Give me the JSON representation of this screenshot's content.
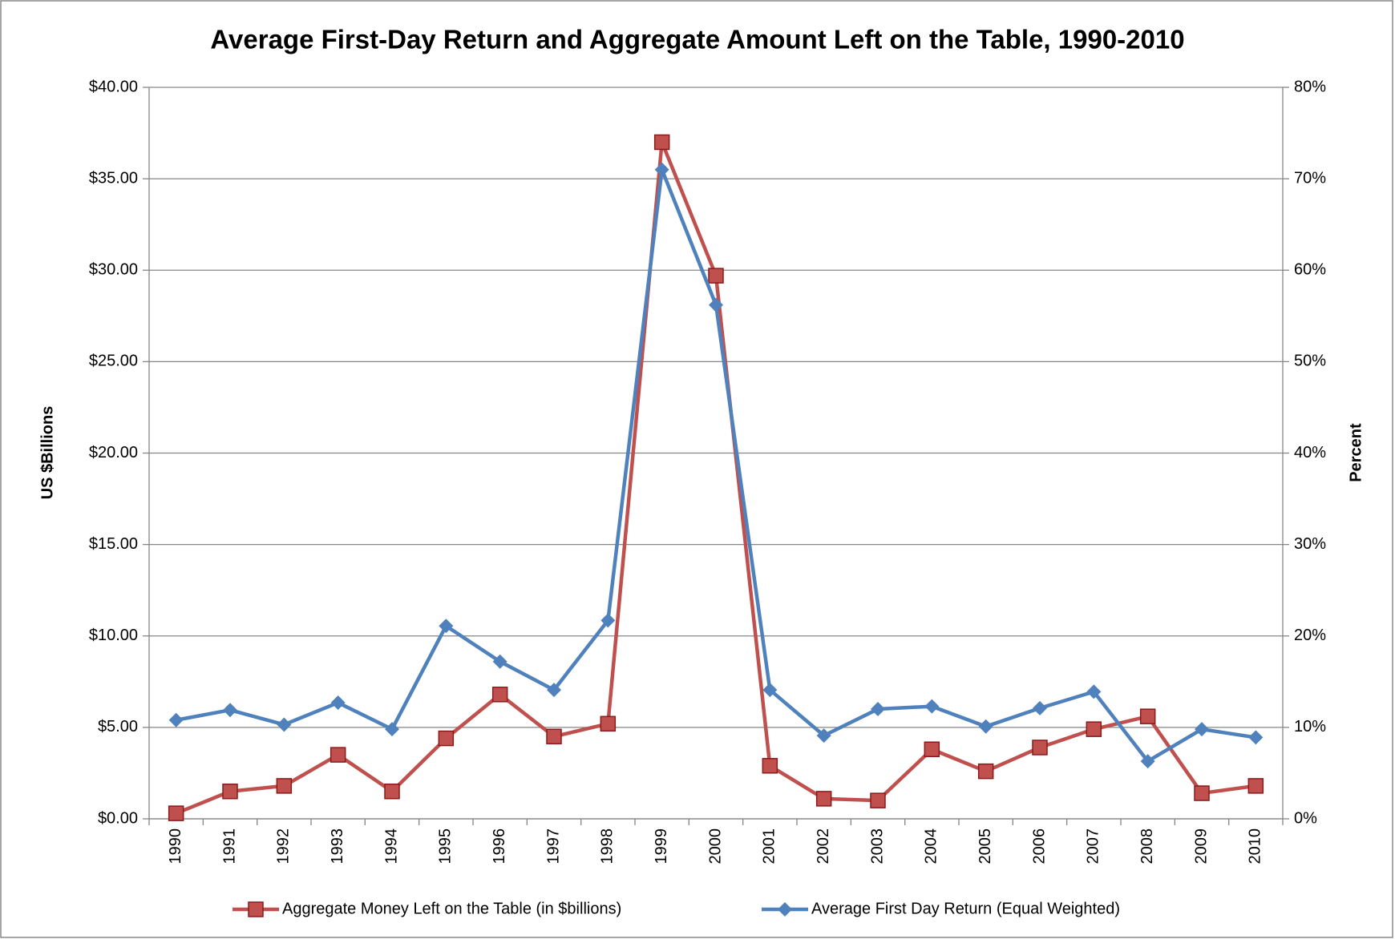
{
  "chart_data": {
    "type": "line",
    "title": "Average First-Day Return and Aggregate Amount Left on the Table, 1990-2010",
    "ylabel": "US $Billions",
    "y2label": "Percent",
    "categories": [
      "1990",
      "1991",
      "1992",
      "1993",
      "1994",
      "1995",
      "1996",
      "1997",
      "1998",
      "1999",
      "2000",
      "2001",
      "2002",
      "2003",
      "2004",
      "2005",
      "2006",
      "2007",
      "2008",
      "2009",
      "2010"
    ],
    "series": [
      {
        "name": "Aggregate Money Left on the Table (in $billions)",
        "color": "#c0504d",
        "marker": "square",
        "axis": "y",
        "values": [
          0.3,
          1.5,
          1.8,
          3.5,
          1.5,
          4.4,
          6.8,
          4.5,
          5.2,
          37.0,
          29.7,
          2.9,
          1.1,
          1.0,
          3.8,
          2.6,
          3.9,
          4.9,
          5.6,
          1.4,
          1.8
        ]
      },
      {
        "name": "Average First Day Return (Equal Weighted)",
        "color": "#4f81bd",
        "marker": "diamond",
        "axis": "y2",
        "values": [
          10.8,
          11.9,
          10.3,
          12.7,
          9.8,
          21.1,
          17.2,
          14.1,
          21.7,
          71.0,
          56.2,
          14.1,
          9.1,
          12.0,
          12.3,
          10.1,
          12.1,
          13.9,
          6.3,
          9.8,
          8.9
        ]
      }
    ],
    "ylim": [
      0,
      40
    ],
    "yticks": [
      {
        "value": 0,
        "label": "$0.00"
      },
      {
        "value": 5,
        "label": "$5.00"
      },
      {
        "value": 10,
        "label": "$10.00"
      },
      {
        "value": 15,
        "label": "$15.00"
      },
      {
        "value": 20,
        "label": "$20.00"
      },
      {
        "value": 25,
        "label": "$25.00"
      },
      {
        "value": 30,
        "label": "$30.00"
      },
      {
        "value": 35,
        "label": "$35.00"
      },
      {
        "value": 40,
        "label": "$40.00"
      }
    ],
    "y2lim": [
      0,
      80
    ],
    "y2ticks": [
      {
        "value": 0,
        "label": "0%"
      },
      {
        "value": 10,
        "label": "10%"
      },
      {
        "value": 20,
        "label": "20%"
      },
      {
        "value": 30,
        "label": "30%"
      },
      {
        "value": 40,
        "label": "40%"
      },
      {
        "value": 50,
        "label": "50%"
      },
      {
        "value": 60,
        "label": "60%"
      },
      {
        "value": 70,
        "label": "70%"
      },
      {
        "value": 80,
        "label": "80%"
      }
    ],
    "grid": true,
    "legend": "bottom"
  }
}
